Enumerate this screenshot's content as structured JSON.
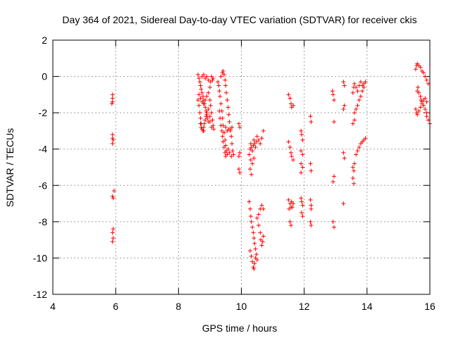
{
  "chart_data": {
    "type": "scatter",
    "title": "Day 364 of 2021, Sidereal Day-to-day VTEC variation (SDTVAR) for receiver ckis",
    "xlabel": "GPS time / hours",
    "ylabel": "SDTVAR / TECUs",
    "xlim": [
      4,
      16
    ],
    "ylim": [
      -12,
      2
    ],
    "xticks": [
      4,
      6,
      8,
      10,
      12,
      14,
      16
    ],
    "yticks": [
      2,
      0,
      -2,
      -4,
      -6,
      -8,
      -10,
      -12
    ],
    "grid": true,
    "marker": "+",
    "color": "#ff0000",
    "series": [
      {
        "name": "SDTVAR",
        "points": [
          [
            5.9,
            -1.0
          ],
          [
            5.9,
            -1.2
          ],
          [
            5.9,
            -1.4
          ],
          [
            5.88,
            -1.5
          ],
          [
            5.9,
            -3.2
          ],
          [
            5.9,
            -3.4
          ],
          [
            5.92,
            -3.5
          ],
          [
            5.9,
            -3.7
          ],
          [
            5.95,
            -6.3
          ],
          [
            5.9,
            -6.6
          ],
          [
            5.92,
            -6.7
          ],
          [
            5.92,
            -8.4
          ],
          [
            5.9,
            -8.6
          ],
          [
            5.92,
            -8.9
          ],
          [
            5.9,
            -9.1
          ],
          [
            8.62,
            0.1
          ],
          [
            8.65,
            -0.1
          ],
          [
            8.68,
            -0.3
          ],
          [
            8.7,
            -0.5
          ],
          [
            8.72,
            -0.7
          ],
          [
            8.75,
            -0.9
          ],
          [
            8.78,
            -1.1
          ],
          [
            8.8,
            -1.3
          ],
          [
            8.82,
            -1.5
          ],
          [
            8.85,
            -1.7
          ],
          [
            8.88,
            -1.9
          ],
          [
            8.9,
            -2.1
          ],
          [
            8.92,
            -2.3
          ],
          [
            8.95,
            -2.5
          ],
          [
            8.62,
            -1.3
          ],
          [
            8.65,
            -1.6
          ],
          [
            8.68,
            -2.0
          ],
          [
            8.7,
            -2.3
          ],
          [
            8.72,
            -2.6
          ],
          [
            8.75,
            -2.9
          ],
          [
            8.78,
            -3.0
          ],
          [
            8.8,
            -2.8
          ],
          [
            8.82,
            -2.6
          ],
          [
            8.85,
            -2.4
          ],
          [
            8.88,
            -2.2
          ],
          [
            8.9,
            -2.0
          ],
          [
            8.65,
            -1.0
          ],
          [
            8.7,
            -1.2
          ],
          [
            8.75,
            -1.4
          ],
          [
            8.8,
            -1.5
          ],
          [
            8.85,
            -1.3
          ],
          [
            8.9,
            -1.1
          ],
          [
            8.95,
            -0.9
          ],
          [
            9.0,
            -0.6
          ],
          [
            9.02,
            -0.3
          ],
          [
            9.05,
            0.0
          ],
          [
            9.08,
            -0.2
          ],
          [
            9.1,
            -0.1
          ],
          [
            8.75,
            0.0
          ],
          [
            8.8,
            0.1
          ],
          [
            8.85,
            -0.1
          ],
          [
            8.9,
            0.0
          ],
          [
            8.95,
            -0.2
          ],
          [
            9.0,
            -1.3
          ],
          [
            9.02,
            -1.6
          ],
          [
            9.05,
            -2.0
          ],
          [
            9.08,
            -2.4
          ],
          [
            9.1,
            -2.7
          ],
          [
            9.12,
            -2.9
          ],
          [
            9.05,
            -2.8
          ],
          [
            8.95,
            -1.8
          ],
          [
            9.0,
            -2.2
          ],
          [
            8.7,
            -2.6
          ],
          [
            8.72,
            -2.8
          ],
          [
            8.8,
            -3.0
          ],
          [
            9.0,
            -2.5
          ],
          [
            9.25,
            -0.3
          ],
          [
            9.28,
            -0.5
          ],
          [
            9.3,
            -0.8
          ],
          [
            9.32,
            -1.1
          ],
          [
            9.35,
            -1.5
          ],
          [
            9.38,
            -1.9
          ],
          [
            9.4,
            -2.3
          ],
          [
            9.42,
            -2.7
          ],
          [
            9.45,
            -3.1
          ],
          [
            9.48,
            -3.5
          ],
          [
            9.5,
            -3.8
          ],
          [
            9.52,
            -4.1
          ],
          [
            9.55,
            -4.3
          ],
          [
            9.3,
            -1.9
          ],
          [
            9.32,
            -2.3
          ],
          [
            9.35,
            -2.7
          ],
          [
            9.38,
            -3.0
          ],
          [
            9.4,
            -3.3
          ],
          [
            9.42,
            -3.6
          ],
          [
            9.45,
            -3.9
          ],
          [
            9.48,
            -4.2
          ],
          [
            9.5,
            -4.4
          ],
          [
            9.35,
            0.0
          ],
          [
            9.4,
            0.2
          ],
          [
            9.42,
            0.3
          ],
          [
            9.45,
            0.1
          ],
          [
            9.48,
            -0.2
          ],
          [
            9.5,
            -0.5
          ],
          [
            9.52,
            -0.9
          ],
          [
            9.55,
            -1.3
          ],
          [
            9.58,
            -1.7
          ],
          [
            9.6,
            -2.1
          ],
          [
            9.62,
            -2.5
          ],
          [
            9.65,
            -2.9
          ],
          [
            9.68,
            -3.3
          ],
          [
            9.7,
            -3.7
          ],
          [
            9.72,
            -4.1
          ],
          [
            9.75,
            -4.3
          ],
          [
            9.5,
            -2.8
          ],
          [
            9.55,
            -3.0
          ],
          [
            9.6,
            -2.9
          ],
          [
            9.65,
            -3.0
          ],
          [
            9.7,
            -2.8
          ],
          [
            9.58,
            -4.0
          ],
          [
            9.62,
            -4.2
          ],
          [
            9.68,
            -4.4
          ],
          [
            9.92,
            -2.6
          ],
          [
            9.95,
            -2.8
          ],
          [
            9.92,
            -5.1
          ],
          [
            9.95,
            -5.3
          ],
          [
            9.95,
            -4.2
          ],
          [
            9.92,
            -4.4
          ],
          [
            10.25,
            -4.3
          ],
          [
            10.28,
            -4.0
          ],
          [
            10.3,
            -3.7
          ],
          [
            10.32,
            -3.9
          ],
          [
            10.35,
            -4.1
          ],
          [
            10.38,
            -3.8
          ],
          [
            10.4,
            -3.5
          ],
          [
            10.42,
            -3.7
          ],
          [
            10.45,
            -3.9
          ],
          [
            10.48,
            -3.6
          ],
          [
            10.5,
            -3.3
          ],
          [
            10.55,
            -3.5
          ],
          [
            10.6,
            -3.7
          ],
          [
            10.65,
            -3.4
          ],
          [
            10.7,
            -3.0
          ],
          [
            10.3,
            -4.6
          ],
          [
            10.35,
            -4.8
          ],
          [
            10.28,
            -5.1
          ],
          [
            10.32,
            -5.4
          ],
          [
            10.4,
            -4.5
          ],
          [
            10.25,
            -6.9
          ],
          [
            10.28,
            -7.3
          ],
          [
            10.3,
            -7.7
          ],
          [
            10.32,
            -8.0
          ],
          [
            10.35,
            -8.3
          ],
          [
            10.38,
            -8.6
          ],
          [
            10.4,
            -8.9
          ],
          [
            10.42,
            -9.2
          ],
          [
            10.45,
            -9.5
          ],
          [
            10.48,
            -9.8
          ],
          [
            10.5,
            -10.1
          ],
          [
            10.5,
            -7.8
          ],
          [
            10.55,
            -8.2
          ],
          [
            10.6,
            -8.6
          ],
          [
            10.62,
            -9.0
          ],
          [
            10.65,
            -9.3
          ],
          [
            10.68,
            -9.1
          ],
          [
            10.7,
            -8.8
          ],
          [
            10.55,
            -7.6
          ],
          [
            10.6,
            -7.3
          ],
          [
            10.65,
            -7.1
          ],
          [
            10.7,
            -7.3
          ],
          [
            10.28,
            -9.6
          ],
          [
            10.32,
            -9.9
          ],
          [
            10.35,
            -10.2
          ],
          [
            10.38,
            -10.5
          ],
          [
            10.4,
            -10.6
          ],
          [
            10.42,
            -10.3
          ],
          [
            10.45,
            -10.0
          ],
          [
            11.5,
            -1.0
          ],
          [
            11.55,
            -1.2
          ],
          [
            11.58,
            -1.5
          ],
          [
            11.6,
            -1.7
          ],
          [
            11.65,
            -1.6
          ],
          [
            11.5,
            -3.6
          ],
          [
            11.55,
            -3.9
          ],
          [
            11.58,
            -4.2
          ],
          [
            11.6,
            -4.4
          ],
          [
            11.65,
            -4.6
          ],
          [
            11.5,
            -6.8
          ],
          [
            11.55,
            -7.0
          ],
          [
            11.58,
            -7.2
          ],
          [
            11.6,
            -6.9
          ],
          [
            11.65,
            -7.0
          ],
          [
            11.52,
            -7.3
          ],
          [
            11.62,
            -7.2
          ],
          [
            11.55,
            -8.0
          ],
          [
            11.58,
            -8.2
          ],
          [
            11.9,
            -3.0
          ],
          [
            11.92,
            -3.2
          ],
          [
            11.95,
            -3.5
          ],
          [
            11.9,
            -4.1
          ],
          [
            11.95,
            -4.3
          ],
          [
            11.9,
            -4.8
          ],
          [
            11.95,
            -5.0
          ],
          [
            11.9,
            -5.3
          ],
          [
            11.9,
            -6.7
          ],
          [
            11.92,
            -6.9
          ],
          [
            11.95,
            -7.1
          ],
          [
            11.92,
            -7.5
          ],
          [
            11.95,
            -7.7
          ],
          [
            12.2,
            -2.2
          ],
          [
            12.22,
            -2.5
          ],
          [
            12.2,
            -4.8
          ],
          [
            12.22,
            -5.2
          ],
          [
            12.2,
            -6.8
          ],
          [
            12.22,
            -7.1
          ],
          [
            12.22,
            -7.3
          ],
          [
            12.2,
            -8.0
          ],
          [
            12.22,
            -8.2
          ],
          [
            12.9,
            -0.8
          ],
          [
            12.92,
            -1.0
          ],
          [
            12.95,
            -1.3
          ],
          [
            12.95,
            -2.5
          ],
          [
            12.95,
            -5.5
          ],
          [
            12.92,
            -5.8
          ],
          [
            12.92,
            -8.0
          ],
          [
            12.95,
            -8.3
          ],
          [
            13.25,
            -0.3
          ],
          [
            13.28,
            -0.5
          ],
          [
            13.28,
            -1.6
          ],
          [
            13.25,
            -1.8
          ],
          [
            13.25,
            -4.2
          ],
          [
            13.28,
            -4.5
          ],
          [
            13.25,
            -7.0
          ],
          [
            13.55,
            -0.9
          ],
          [
            13.58,
            -0.6
          ],
          [
            13.6,
            -0.4
          ],
          [
            13.65,
            -0.6
          ],
          [
            13.7,
            -0.8
          ],
          [
            13.75,
            -0.5
          ],
          [
            13.8,
            -0.3
          ],
          [
            13.85,
            -0.5
          ],
          [
            13.9,
            -0.4
          ],
          [
            13.95,
            -0.3
          ],
          [
            13.6,
            -2.0
          ],
          [
            13.65,
            -1.8
          ],
          [
            13.7,
            -1.6
          ],
          [
            13.75,
            -1.3
          ],
          [
            13.8,
            -1.1
          ],
          [
            13.85,
            -0.8
          ],
          [
            13.9,
            -0.6
          ],
          [
            13.6,
            -2.4
          ],
          [
            13.55,
            -2.6
          ],
          [
            13.55,
            -5.0
          ],
          [
            13.58,
            -5.2
          ],
          [
            13.6,
            -4.8
          ],
          [
            13.55,
            -5.6
          ],
          [
            13.58,
            -5.9
          ],
          [
            13.65,
            -4.3
          ],
          [
            13.7,
            -4.1
          ],
          [
            13.75,
            -3.9
          ],
          [
            13.8,
            -3.7
          ],
          [
            13.85,
            -3.6
          ],
          [
            13.9,
            -3.5
          ],
          [
            13.95,
            -3.4
          ],
          [
            15.55,
            0.4
          ],
          [
            15.58,
            0.6
          ],
          [
            15.6,
            0.7
          ],
          [
            15.65,
            0.6
          ],
          [
            15.7,
            0.5
          ],
          [
            15.75,
            0.3
          ],
          [
            15.8,
            0.2
          ],
          [
            15.85,
            0.0
          ],
          [
            15.9,
            -0.2
          ],
          [
            15.95,
            -0.4
          ],
          [
            15.6,
            -0.8
          ],
          [
            15.62,
            -0.6
          ],
          [
            15.65,
            -0.9
          ],
          [
            15.7,
            -1.1
          ],
          [
            15.72,
            -1.3
          ],
          [
            15.75,
            -1.4
          ],
          [
            15.8,
            -1.6
          ],
          [
            15.85,
            -1.8
          ],
          [
            15.9,
            -2.0
          ],
          [
            15.55,
            -1.8
          ],
          [
            15.58,
            -2.0
          ],
          [
            15.6,
            -2.1
          ],
          [
            15.65,
            -1.9
          ],
          [
            15.7,
            -1.7
          ],
          [
            15.75,
            -1.5
          ],
          [
            15.8,
            -1.3
          ],
          [
            15.85,
            -1.2
          ],
          [
            15.9,
            -1.4
          ],
          [
            15.9,
            -2.2
          ],
          [
            15.95,
            -2.4
          ],
          [
            16.0,
            -2.6
          ]
        ]
      }
    ]
  }
}
